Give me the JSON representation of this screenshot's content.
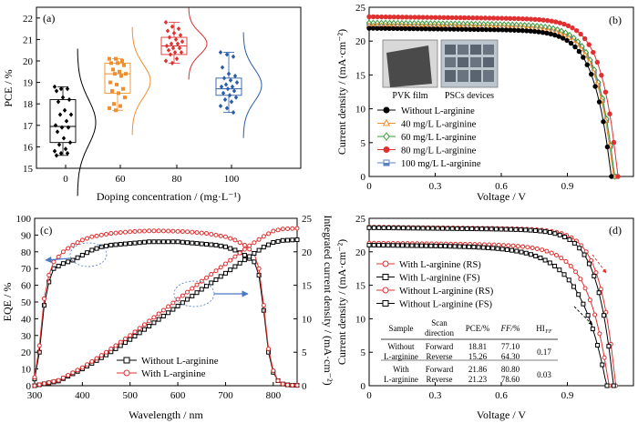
{
  "chart_data": [
    {
      "panel": "(a)",
      "type": "box",
      "xlabel": "Doping concentration / (mg·L⁻¹)",
      "ylabel": "PCE / %",
      "categories": [
        "0",
        "60",
        "80",
        "100"
      ],
      "ylim": [
        15,
        22.5
      ],
      "yticks": [
        15,
        16,
        17,
        18,
        19,
        20,
        21,
        22
      ],
      "series": [
        {
          "category": "0",
          "color": "#000000",
          "box": {
            "q1": 16.2,
            "median": 16.95,
            "q3": 18.2,
            "whisker_low": 15.6,
            "whisker_high": 18.8
          },
          "points": [
            18.8,
            18.7,
            18.7,
            18.6,
            18.3,
            18.2,
            18.1,
            17.7,
            17.5,
            17.5,
            17.2,
            17.0,
            16.9,
            16.9,
            16.7,
            16.4,
            16.2,
            16.1,
            15.9,
            15.8,
            15.7,
            15.7,
            15.6
          ]
        },
        {
          "category": "60",
          "color": "#f28e2b",
          "box": {
            "q1": 18.5,
            "median": 19.4,
            "q3": 19.9,
            "whisker_low": 17.7,
            "whisker_high": 20.1
          },
          "points": [
            20.1,
            20.1,
            20.0,
            19.9,
            19.9,
            19.8,
            19.6,
            19.5,
            19.4,
            19.4,
            19.3,
            19.0,
            18.9,
            18.7,
            18.6,
            18.5,
            18.3,
            18.0,
            17.9,
            17.8,
            17.7
          ]
        },
        {
          "category": "80",
          "color": "#e03030",
          "box": {
            "q1": 20.3,
            "median": 20.7,
            "q3": 21.1,
            "whisker_low": 19.9,
            "whisker_high": 21.8
          },
          "points": [
            21.8,
            21.6,
            21.5,
            21.4,
            21.3,
            21.2,
            21.1,
            21.0,
            20.9,
            20.8,
            20.8,
            20.7,
            20.6,
            20.6,
            20.5,
            20.4,
            20.4,
            20.3,
            20.1,
            20.0,
            19.9
          ]
        },
        {
          "category": "100",
          "color": "#2a5ca8",
          "box": {
            "q1": 18.4,
            "median": 18.7,
            "q3": 19.2,
            "whisker_low": 17.6,
            "whisker_high": 20.4
          },
          "points": [
            20.4,
            20.3,
            20.2,
            19.7,
            19.4,
            19.3,
            19.2,
            19.1,
            19.0,
            18.9,
            18.8,
            18.8,
            18.7,
            18.6,
            18.5,
            18.4,
            18.3,
            18.2,
            18.1,
            17.9,
            17.8,
            17.6
          ]
        }
      ]
    },
    {
      "panel": "(b)",
      "type": "line",
      "xlabel": "Voltage / V",
      "ylabel": "Current density / (mA·cm⁻²)",
      "xlim": [
        0,
        1.2
      ],
      "ylim": [
        0,
        25
      ],
      "xticks": [
        0,
        0.3,
        0.6,
        0.9
      ],
      "yticks": [
        0,
        5,
        10,
        15,
        20,
        25
      ],
      "inset_labels": [
        "PVK film",
        "PSCs devices"
      ],
      "series": [
        {
          "name": "Without  L-arginine",
          "color": "#000000",
          "jsc": 21.9,
          "voc": 1.1,
          "knee": 0.86
        },
        {
          "name": "40 mg/L  L-arginine",
          "color": "#f28e2b",
          "jsc": 22.3,
          "voc": 1.11,
          "knee": 0.87
        },
        {
          "name": "60 mg/L  L-arginine",
          "color": "#3a9a3a",
          "jsc": 22.7,
          "voc": 1.115,
          "knee": 0.875
        },
        {
          "name": "80 mg/L  L-arginine",
          "color": "#e03030",
          "jsc": 23.6,
          "voc": 1.13,
          "knee": 0.9
        },
        {
          "name": "100 mg/L  L-arginine",
          "color": "#5b7fc4",
          "jsc": 22.5,
          "voc": 1.115,
          "knee": 0.87
        }
      ]
    },
    {
      "panel": "(c)",
      "type": "line",
      "xlabel": "Wavelength / nm",
      "ylabel": "EQE / %",
      "y2label": "Integrated current density / (mA·cm⁻²)",
      "xlim": [
        300,
        850
      ],
      "ylim": [
        0,
        100
      ],
      "y2lim": [
        0,
        25
      ],
      "xticks": [
        300,
        400,
        500,
        600,
        700,
        800
      ],
      "yticks": [
        0,
        10,
        20,
        30,
        40,
        50,
        60,
        70,
        80,
        90,
        100
      ],
      "y2ticks": [
        0,
        5,
        10,
        15,
        20,
        25
      ],
      "series": [
        {
          "name": "Without L-arginine",
          "color": "#000000",
          "axis": "left",
          "x": [
            300,
            310,
            320,
            330,
            340,
            360,
            380,
            400,
            420,
            440,
            460,
            480,
            500,
            520,
            540,
            560,
            580,
            600,
            620,
            640,
            660,
            680,
            700,
            720,
            740,
            760,
            770,
            780,
            790,
            800,
            810,
            820,
            830,
            840,
            850
          ],
          "y": [
            4,
            20,
            48,
            62,
            70,
            73,
            75,
            78,
            81,
            83,
            84,
            84.5,
            85,
            85.5,
            86,
            86,
            86,
            86,
            85.5,
            85,
            84.5,
            84,
            83,
            81,
            78,
            74,
            66,
            45,
            20,
            8,
            3,
            1,
            0.5,
            0.3,
            0.2
          ]
        },
        {
          "name": "With L-arginine",
          "color": "#e03030",
          "axis": "left",
          "x": [
            300,
            310,
            320,
            330,
            340,
            360,
            380,
            400,
            420,
            440,
            460,
            480,
            500,
            520,
            540,
            560,
            580,
            600,
            620,
            640,
            660,
            680,
            700,
            720,
            740,
            760,
            770,
            780,
            790,
            800,
            810,
            820,
            830,
            840,
            850
          ],
          "y": [
            5,
            24,
            52,
            66,
            74,
            80,
            84,
            87,
            89,
            90,
            91,
            91.5,
            92,
            92.3,
            92.5,
            92.5,
            92.4,
            92.2,
            92,
            91.5,
            91,
            90,
            89,
            87,
            84,
            79,
            70,
            48,
            22,
            9,
            3,
            1,
            0.5,
            0.3,
            0.2
          ]
        },
        {
          "name": "Without L-arginine (integrated)",
          "color": "#000000",
          "axis": "right",
          "x": [
            300,
            350,
            400,
            450,
            500,
            550,
            600,
            650,
            700,
            750,
            780,
            800,
            820,
            850
          ],
          "y": [
            0,
            0.7,
            2.5,
            4.6,
            6.9,
            9.4,
            11.9,
            14.4,
            16.8,
            19.3,
            20.7,
            21.4,
            21.7,
            21.8
          ]
        },
        {
          "name": "With L-arginine (integrated)",
          "color": "#e03030",
          "axis": "right",
          "x": [
            300,
            350,
            400,
            450,
            500,
            550,
            600,
            650,
            700,
            750,
            780,
            800,
            820,
            850
          ],
          "y": [
            0,
            0.8,
            2.7,
            5.0,
            7.5,
            10.2,
            12.9,
            15.6,
            18.2,
            20.9,
            22.3,
            23.1,
            23.4,
            23.5
          ]
        }
      ],
      "legend": [
        "Without L-arginine",
        "With L-arginine"
      ]
    },
    {
      "panel": "(d)",
      "type": "line",
      "xlabel": "Voltage / V",
      "ylabel": "Current density / (mA·cm⁻²)",
      "xlim": [
        0,
        1.2
      ],
      "ylim": [
        0,
        25
      ],
      "xticks": [
        0,
        0.3,
        0.6,
        0.9
      ],
      "yticks": [
        0,
        5,
        10,
        15,
        20,
        25
      ],
      "series": [
        {
          "name": "With L-arginine (RS)",
          "color": "#e03030",
          "style": "circle",
          "jsc": 23.7,
          "voc": 1.12,
          "knee": 0.9
        },
        {
          "name": "With L-arginine (FS)",
          "color": "#000000",
          "style": "square",
          "jsc": 23.6,
          "voc": 1.11,
          "knee": 0.88
        },
        {
          "name": "Without L-arginine (RS)",
          "color": "#e03030",
          "style": "circle",
          "jsc": 21.3,
          "voc": 1.09,
          "knee": 0.8
        },
        {
          "name": "Without L-arginine (FS)",
          "color": "#000000",
          "style": "square",
          "jsc": 21.0,
          "voc": 1.08,
          "knee": 0.7
        }
      ],
      "table": {
        "headers": [
          "Sample",
          "Scan direction",
          "PCE/%",
          "FF/%",
          "HI_FF"
        ],
        "rows": [
          {
            "sample": "Without L-arginine",
            "directions": [
              "Forward",
              "Reverse"
            ],
            "pce": [
              "18.81",
              "15.26"
            ],
            "ff": [
              "77.10",
              "64.30"
            ],
            "hi": "0.17"
          },
          {
            "sample": "With L-arginine",
            "directions": [
              "Forward",
              "Reverse"
            ],
            "pce": [
              "21.86",
              "21.23"
            ],
            "ff": [
              "80.80",
              "78.60"
            ],
            "hi": "0.03"
          }
        ]
      }
    }
  ]
}
